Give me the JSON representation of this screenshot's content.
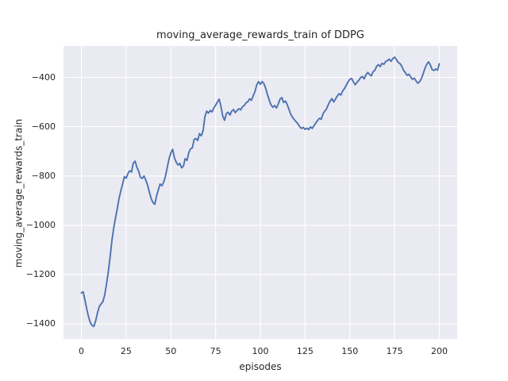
{
  "chart_data": {
    "type": "line",
    "title": "moving_average_rewards_train of DDPG",
    "xlabel": "episodes",
    "ylabel": "moving_average_rewards_train",
    "x_ticks": [
      0,
      25,
      50,
      75,
      100,
      125,
      150,
      175,
      200
    ],
    "y_ticks": [
      -400,
      -600,
      -800,
      -1000,
      -1200,
      -1400
    ],
    "xlim": [
      -10,
      210
    ],
    "ylim": [
      -1462,
      -271.5
    ],
    "grid": true,
    "legend_position": "none",
    "line_color": "#4c72b0",
    "plot_background": "#eaeaf2",
    "grid_color": "#ffffff",
    "text_color": "#262626",
    "series": [
      {
        "name": "moving_average_rewards_train",
        "x_start": 0,
        "x_step": 1,
        "values": [
          -1275,
          -1270,
          -1305,
          -1340,
          -1372,
          -1395,
          -1407,
          -1410,
          -1387,
          -1356,
          -1330,
          -1320,
          -1310,
          -1283,
          -1240,
          -1190,
          -1132,
          -1065,
          -1015,
          -972,
          -935,
          -893,
          -862,
          -834,
          -803,
          -809,
          -790,
          -779,
          -784,
          -748,
          -740,
          -764,
          -781,
          -806,
          -810,
          -800,
          -817,
          -838,
          -866,
          -892,
          -908,
          -915,
          -882,
          -856,
          -833,
          -840,
          -824,
          -800,
          -764,
          -730,
          -706,
          -692,
          -727,
          -744,
          -756,
          -749,
          -767,
          -760,
          -730,
          -737,
          -706,
          -690,
          -686,
          -652,
          -648,
          -656,
          -628,
          -637,
          -616,
          -560,
          -537,
          -545,
          -534,
          -540,
          -524,
          -513,
          -500,
          -488,
          -519,
          -558,
          -574,
          -547,
          -541,
          -553,
          -537,
          -530,
          -543,
          -534,
          -527,
          -532,
          -519,
          -514,
          -503,
          -499,
          -487,
          -493,
          -474,
          -458,
          -430,
          -417,
          -428,
          -417,
          -425,
          -445,
          -470,
          -493,
          -512,
          -521,
          -514,
          -524,
          -509,
          -488,
          -482,
          -502,
          -496,
          -510,
          -530,
          -550,
          -562,
          -572,
          -580,
          -588,
          -600,
          -607,
          -603,
          -611,
          -606,
          -612,
          -601,
          -607,
          -596,
          -585,
          -575,
          -566,
          -570,
          -548,
          -537,
          -528,
          -510,
          -496,
          -486,
          -500,
          -488,
          -476,
          -466,
          -472,
          -455,
          -445,
          -432,
          -418,
          -408,
          -404,
          -418,
          -430,
          -420,
          -412,
          -401,
          -396,
          -406,
          -390,
          -380,
          -388,
          -394,
          -377,
          -371,
          -355,
          -348,
          -356,
          -343,
          -347,
          -336,
          -332,
          -326,
          -335,
          -324,
          -318,
          -327,
          -339,
          -344,
          -354,
          -371,
          -381,
          -392,
          -387,
          -398,
          -408,
          -403,
          -414,
          -424,
          -417,
          -405,
          -385,
          -363,
          -347,
          -337,
          -350,
          -368,
          -372,
          -366,
          -371,
          -345
        ]
      }
    ]
  }
}
